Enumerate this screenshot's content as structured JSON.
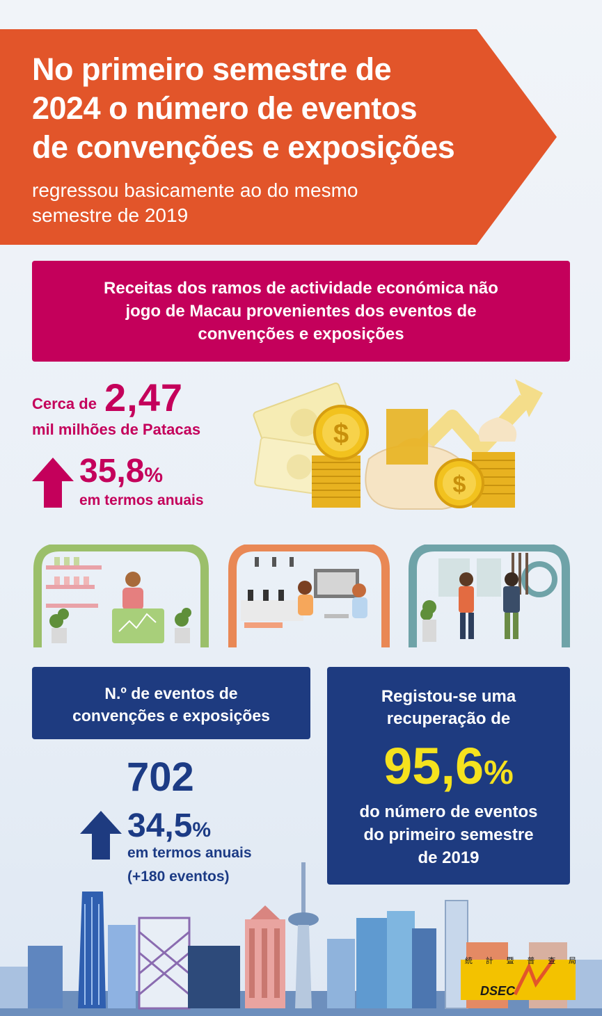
{
  "header": {
    "title_lines": [
      "No primeiro semestre de",
      "2024 o número de eventos",
      "de convenções e exposições"
    ],
    "subtitle_lines": [
      "regressou basicamente ao do mesmo",
      "semestre de 2019"
    ]
  },
  "revenue": {
    "heading_lines": [
      "Receitas dos ramos de actividade económica não",
      "jogo de Macau provenientes dos eventos de",
      "convenções e exposições"
    ],
    "prefix": "Cerca de",
    "value": "2,47",
    "unit": "mil milhões de Patacas",
    "change_value": "35,8",
    "change_pct": "%",
    "change_label": "em termos anuais"
  },
  "events": {
    "heading_lines": [
      "N.º de eventos de",
      "convenções e exposições"
    ],
    "value": "702",
    "change_value": "34,5",
    "change_pct": "%",
    "change_label": "em termos anuais",
    "change_extra": "(+180 eventos)"
  },
  "recovery": {
    "lines_top": [
      "Registou-se uma",
      "recuperação de"
    ],
    "value": "95,6",
    "pct": "%",
    "lines_bottom": [
      "do número de eventos",
      "do primeiro semestre",
      "de 2019"
    ]
  },
  "logo": {
    "chars": [
      "統",
      "計",
      "暨",
      "普",
      "查",
      "局"
    ],
    "text": "DSEC"
  },
  "colors": {
    "banner": "#e2552a",
    "magenta": "#c4005b",
    "navy": "#1e3b80",
    "yellow": "#f5e21e",
    "frame_green": "#9bbf6a",
    "frame_orange": "#e98855",
    "frame_teal": "#6fa3a8"
  }
}
